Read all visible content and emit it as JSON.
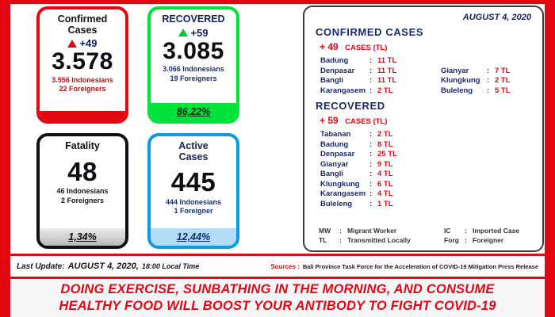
{
  "colors": {
    "frame_red": "#e30613",
    "navy": "#1b2a6b",
    "green": "#00e23c",
    "blue": "#0a9be0",
    "silver": "#bdbdbd"
  },
  "punct": {
    "colon": ":"
  },
  "cards": {
    "confirmed": {
      "title_line1": "Confirmed",
      "title_line2": "Cases",
      "delta": "+49",
      "value": "3.578",
      "detail1": "3.556 Indonesians",
      "detail2": "22 Foreigners"
    },
    "recovered": {
      "title": "RECOVERED",
      "delta": "+59",
      "value": "3.085",
      "detail1": "3.066 Indonesians",
      "detail2": "19 Foreigners",
      "percent": "86,22%"
    },
    "fatality": {
      "title": "Fatality",
      "value": "48",
      "detail1": "46 Indonesians",
      "detail2": "2 Foreigners",
      "percent": "1,34%"
    },
    "active": {
      "title_line1": "Active",
      "title_line2": "Cases",
      "value": "445",
      "detail1": "444 Indonesians",
      "detail2": "1 Foreigner",
      "percent": "12,44%"
    }
  },
  "panel": {
    "date": "AUGUST 4, 2020",
    "confirmed": {
      "heading": "CONFIRMED CASES",
      "delta_num": "+ 49",
      "delta_label": "CASES (TL)",
      "col1": [
        {
          "name": "Badung",
          "value": "11 TL"
        },
        {
          "name": "Denpasar",
          "value": "11 TL"
        },
        {
          "name": "Bangli",
          "value": "11 TL"
        },
        {
          "name": "Karangasem",
          "value": "2 TL"
        }
      ],
      "col2": [
        {
          "name": "Gianyar",
          "value": "7 TL"
        },
        {
          "name": "Klungkung",
          "value": "2 TL"
        },
        {
          "name": "Buleleng",
          "value": "5 TL"
        }
      ]
    },
    "recovered": {
      "heading": "RECOVERED",
      "delta_num": "+ 59",
      "delta_label": "CASES (TL)",
      "rows": [
        {
          "name": "Tabanan",
          "value": "2 TL"
        },
        {
          "name": "Badung",
          "value": "8 TL"
        },
        {
          "name": "Denpasar",
          "value": "25 TL"
        },
        {
          "name": "Gianyar",
          "value": "9 TL"
        },
        {
          "name": "Bangli",
          "value": "4 TL"
        },
        {
          "name": "Klungkung",
          "value": "6 TL"
        },
        {
          "name": "Karangasem",
          "value": "4 TL"
        },
        {
          "name": "Buleleng",
          "value": "1 TL"
        }
      ]
    },
    "legend": [
      {
        "abbr": "MW",
        "label": "Migrant Worker"
      },
      {
        "abbr": "IC",
        "label": "Imported Case"
      },
      {
        "abbr": "TL",
        "label": "Transmitted Locally"
      },
      {
        "abbr": "Forg",
        "label": "Foreigner"
      }
    ]
  },
  "footer": {
    "last_update_label": "Last Update:",
    "last_update_date": "AUGUST 4, 2020,",
    "last_update_time": "18:00 Local Time",
    "sources_label": "Sources :",
    "sources_text": "Bali Province Task Force for the Acceleration of COVID-19 Mitigation Press Release"
  },
  "message": {
    "line1": "DOING EXERCISE, SUNBATHING IN THE MORNING, AND CONSUME",
    "line2": "HEALTHY FOOD WILL BOOST YOUR ANTIBODY TO FIGHT COVID-19"
  }
}
